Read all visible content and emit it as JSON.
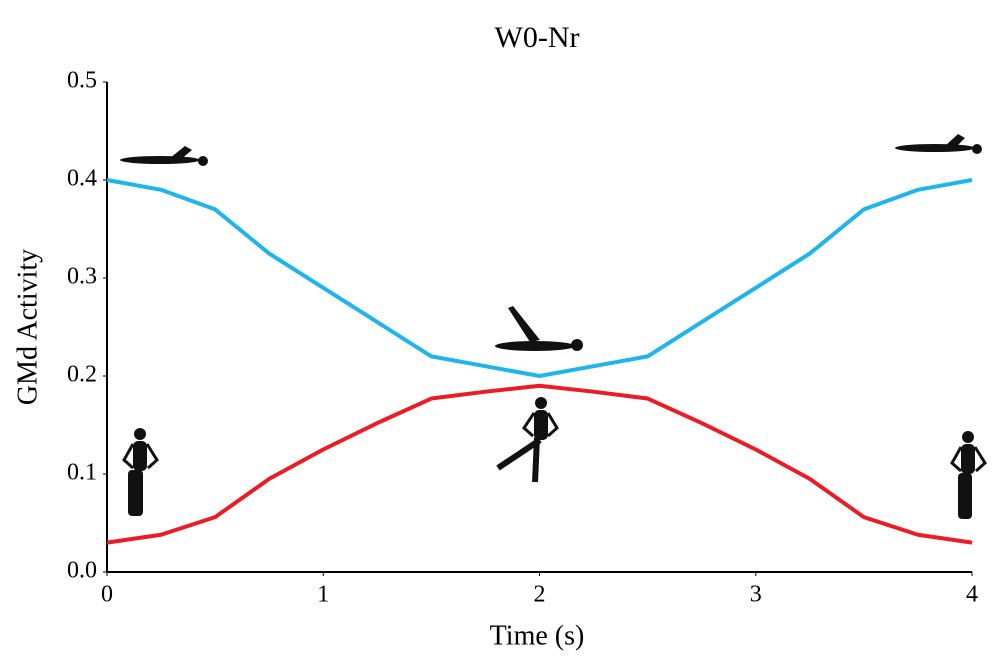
{
  "chart_data": {
    "type": "line",
    "title": "W0-Nr",
    "xlabel": "Time (s)",
    "ylabel": "GMd Activity",
    "x": [
      0,
      0.25,
      0.5,
      0.75,
      1,
      1.25,
      1.5,
      1.75,
      2,
      2.25,
      2.5,
      2.75,
      3,
      3.25,
      3.5,
      3.75,
      4
    ],
    "series": [
      {
        "color": "#1eb4ec",
        "values": [
          0.4,
          0.39,
          0.37,
          0.325,
          0.29,
          0.255,
          0.22,
          0.21,
          0.2,
          0.21,
          0.22,
          0.255,
          0.29,
          0.325,
          0.37,
          0.39,
          0.4
        ]
      },
      {
        "color": "#ec1c24",
        "values": [
          0.03,
          0.038,
          0.056,
          0.095,
          0.125,
          0.152,
          0.177,
          0.184,
          0.19,
          0.184,
          0.177,
          0.152,
          0.125,
          0.095,
          0.056,
          0.038,
          0.03
        ]
      }
    ],
    "xlim": [
      0,
      4
    ],
    "xticks": [
      0,
      1,
      2,
      3,
      4
    ],
    "ylim": [
      0,
      0.5
    ],
    "yticks": [
      {
        "value": 0,
        "label": "0.0"
      },
      0.1,
      0.2,
      0.3,
      0.4,
      0.5
    ],
    "grid": false
  }
}
